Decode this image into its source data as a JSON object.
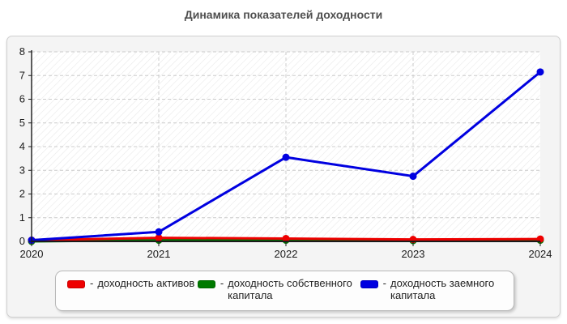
{
  "chart_data": {
    "type": "line",
    "title": "Динамика показателей доходности",
    "categories": [
      "2020",
      "2021",
      "2022",
      "2023",
      "2024"
    ],
    "series": [
      {
        "name": "доходность активов",
        "color": "#ee0000",
        "values": [
          0.05,
          0.15,
          0.12,
          0.08,
          0.1
        ]
      },
      {
        "name": "доходность собственного капитала",
        "color": "#007a00",
        "values": [
          0.0,
          0.05,
          0.05,
          0.03,
          0.05
        ]
      },
      {
        "name": "доходность заемного капитала",
        "color": "#0000e0",
        "values": [
          0.05,
          0.4,
          3.55,
          2.75,
          7.15
        ]
      }
    ],
    "xlabel": "",
    "ylabel": "",
    "ylim": [
      0,
      8
    ],
    "yticks": [
      0,
      1,
      2,
      3,
      4,
      5,
      6,
      7,
      8
    ],
    "grid": true,
    "legend_position": "bottom",
    "legend": {
      "dash": "-",
      "items": [
        {
          "label": "доходность активов",
          "color": "#ee0000",
          "wrap": "none"
        },
        {
          "label": "доходность собственного капитала",
          "color": "#007a00",
          "wrap": "wide"
        },
        {
          "label": "доходность заемного капитала",
          "color": "#0000e0",
          "wrap": "narrow"
        }
      ]
    },
    "colors": {
      "panel_bg": "#f4f4f4",
      "plot_bg": "#ffffff",
      "hatch": "#e8e8e8",
      "gridline": "#cccccc",
      "axis": "#1a1a1a",
      "title": "#4f4f4f"
    }
  }
}
